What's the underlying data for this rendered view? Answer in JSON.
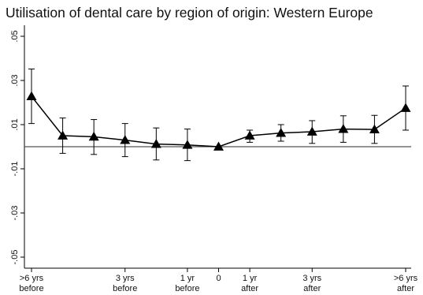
{
  "chart_data": {
    "type": "line",
    "title": "Utilisation of dental care by region of origin: Western Europe",
    "xlabel": "",
    "ylabel": "",
    "x_ticks": [
      {
        "x": -6,
        "lines": [
          ">6 yrs",
          "before"
        ]
      },
      {
        "x": -3,
        "lines": [
          "3 yrs",
          "before"
        ]
      },
      {
        "x": -1,
        "lines": [
          "1 yr",
          "before"
        ]
      },
      {
        "x": 0,
        "lines": [
          "0"
        ]
      },
      {
        "x": 1,
        "lines": [
          "1 yr",
          "after"
        ]
      },
      {
        "x": 3,
        "lines": [
          "3 yrs",
          "after"
        ]
      },
      {
        "x": 6,
        "lines": [
          ">6 yrs",
          "after"
        ]
      }
    ],
    "y_ticks": [
      {
        "value": 0.05,
        "label": ".05"
      },
      {
        "value": 0.03,
        "label": ".03"
      },
      {
        "value": 0.01,
        "label": ".01"
      },
      {
        "value": -0.01,
        "label": "-.01"
      },
      {
        "value": -0.03,
        "label": "-.03"
      },
      {
        "value": -0.05,
        "label": "-.05"
      }
    ],
    "xlim": [
      -6,
      6
    ],
    "ylim": [
      -0.055,
      0.055
    ],
    "reference_line_y": 0,
    "marker": "triangle",
    "grid": false,
    "series": [
      {
        "color": "#000000",
        "points": [
          {
            "x": -6,
            "y": 0.0228,
            "lo": 0.0105,
            "hi": 0.0352
          },
          {
            "x": -5,
            "y": 0.005,
            "lo": -0.003,
            "hi": 0.013
          },
          {
            "x": -4,
            "y": 0.0045,
            "lo": -0.0035,
            "hi": 0.0123
          },
          {
            "x": -3,
            "y": 0.003,
            "lo": -0.0045,
            "hi": 0.0105
          },
          {
            "x": -2,
            "y": 0.0012,
            "lo": -0.006,
            "hi": 0.0085
          },
          {
            "x": -1,
            "y": 0.0008,
            "lo": -0.0063,
            "hi": 0.008
          },
          {
            "x": 0,
            "y": 0.0,
            "lo": 0.0,
            "hi": 0.0
          },
          {
            "x": 1,
            "y": 0.005,
            "lo": 0.002,
            "hi": 0.0075
          },
          {
            "x": 2,
            "y": 0.0062,
            "lo": 0.0025,
            "hi": 0.01
          },
          {
            "x": 3,
            "y": 0.0068,
            "lo": 0.0015,
            "hi": 0.0118
          },
          {
            "x": 4,
            "y": 0.008,
            "lo": 0.002,
            "hi": 0.014
          },
          {
            "x": 5,
            "y": 0.0078,
            "lo": 0.0015,
            "hi": 0.0142
          },
          {
            "x": 6,
            "y": 0.0175,
            "lo": 0.0075,
            "hi": 0.0275
          }
        ]
      }
    ]
  }
}
